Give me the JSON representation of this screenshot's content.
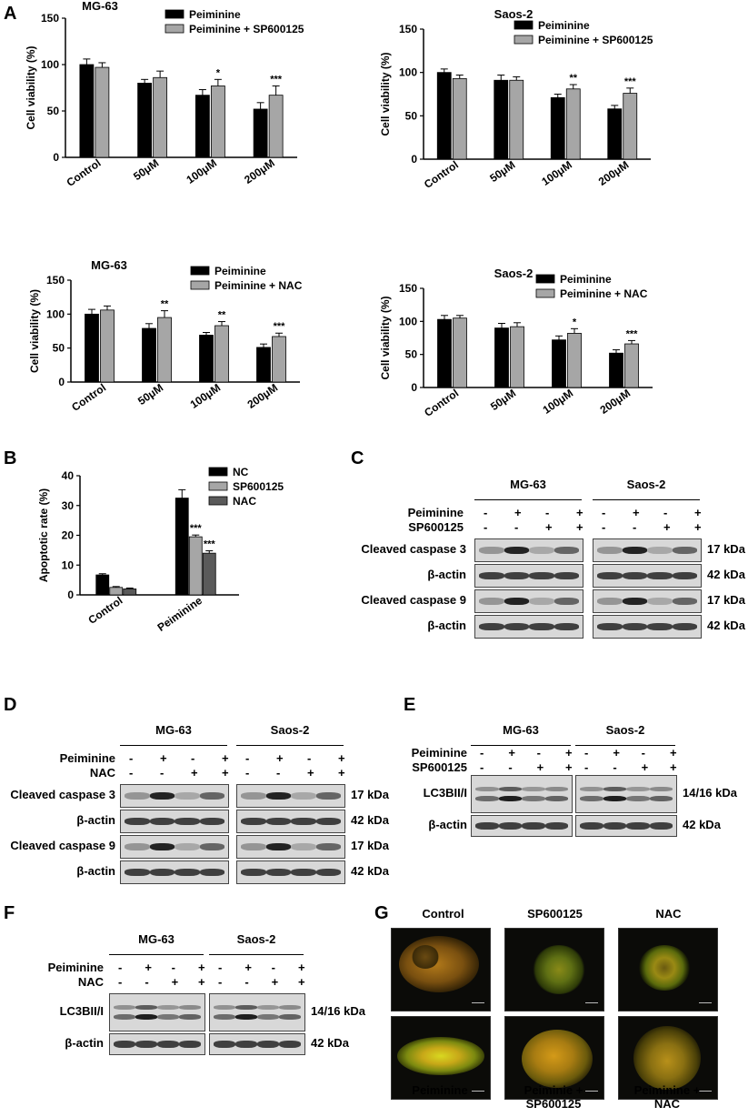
{
  "panel_labels": {
    "A": "A",
    "B": "B",
    "C": "C",
    "D": "D",
    "E": "E",
    "F": "F",
    "G": "G"
  },
  "chart_data": [
    {
      "id": "A1",
      "type": "bar",
      "title": "MG-63",
      "categories": [
        "Control",
        "50μM",
        "100μM",
        "200μM"
      ],
      "ylabel": "Cell viability (%)",
      "ylim": [
        0,
        150
      ],
      "yticks": [
        0,
        50,
        100,
        150
      ],
      "series": [
        {
          "name": "Peiminine",
          "values": [
            100,
            80,
            67,
            52
          ],
          "errors": [
            6,
            4,
            6,
            7
          ],
          "color": "#000000"
        },
        {
          "name": "Peiminine + SP600125",
          "values": [
            97,
            86,
            77,
            67
          ],
          "errors": [
            5,
            7,
            7,
            10
          ],
          "color": "#a6a6a6"
        }
      ],
      "annotations": [
        "",
        "",
        "*",
        "***"
      ],
      "legend": "top-right"
    },
    {
      "id": "A2",
      "type": "bar",
      "title": "Saos-2",
      "categories": [
        "Control",
        "50μM",
        "100μM",
        "200μM"
      ],
      "ylabel": "Cell viability (%)",
      "ylim": [
        0,
        150
      ],
      "yticks": [
        0,
        50,
        100,
        150
      ],
      "series": [
        {
          "name": "Peiminine",
          "values": [
            100,
            91,
            71,
            58
          ],
          "errors": [
            4,
            6,
            4,
            4
          ],
          "color": "#000000"
        },
        {
          "name": "Peiminine + SP600125",
          "values": [
            93,
            91,
            81,
            76
          ],
          "errors": [
            4,
            4,
            5,
            6
          ],
          "color": "#a6a6a6"
        }
      ],
      "annotations": [
        "",
        "",
        "**",
        "***"
      ],
      "legend": "top-right"
    },
    {
      "id": "A3",
      "type": "bar",
      "title": "MG-63",
      "categories": [
        "Control",
        "50μM",
        "100μM",
        "200μM"
      ],
      "ylabel": "Cell viability (%)",
      "ylim": [
        0,
        150
      ],
      "yticks": [
        0,
        50,
        100,
        150
      ],
      "series": [
        {
          "name": "Peiminine",
          "values": [
            100,
            79,
            69,
            51
          ],
          "errors": [
            7,
            7,
            4,
            5
          ],
          "color": "#000000"
        },
        {
          "name": "Peiminine + NAC",
          "values": [
            106,
            95,
            83,
            67
          ],
          "errors": [
            6,
            10,
            6,
            5
          ],
          "color": "#a6a6a6"
        }
      ],
      "annotations": [
        "",
        "**",
        "**",
        "***"
      ],
      "legend": "top-right"
    },
    {
      "id": "A4",
      "type": "bar",
      "title": "Saos-2",
      "categories": [
        "Control",
        "50μM",
        "100μM",
        "200μM"
      ],
      "ylabel": "Cell viability (%)",
      "ylim": [
        0,
        150
      ],
      "yticks": [
        0,
        50,
        100,
        150
      ],
      "series": [
        {
          "name": "Peiminine",
          "values": [
            103,
            90,
            72,
            52
          ],
          "errors": [
            6,
            7,
            6,
            5
          ],
          "color": "#000000"
        },
        {
          "name": "Peiminine + NAC",
          "values": [
            105,
            92,
            82,
            66
          ],
          "errors": [
            4,
            6,
            7,
            5
          ],
          "color": "#a6a6a6"
        }
      ],
      "annotations": [
        "",
        "",
        "*",
        "***"
      ],
      "legend": "top-right"
    },
    {
      "id": "B",
      "type": "bar",
      "title": "",
      "categories": [
        "Control",
        "Peiminine"
      ],
      "ylabel": "Apoptotic rate (%)",
      "ylim": [
        0,
        40
      ],
      "yticks": [
        0,
        10,
        20,
        30,
        40
      ],
      "series": [
        {
          "name": "NC",
          "values": [
            6.7,
            32.5
          ],
          "errors": [
            0.4,
            2.8
          ],
          "color": "#000000"
        },
        {
          "name": "SP600125",
          "values": [
            2.5,
            19.5
          ],
          "errors": [
            0.3,
            0.6
          ],
          "color": "#a6a6a6"
        },
        {
          "name": "NAC",
          "values": [
            2.0,
            14.0
          ],
          "errors": [
            0.3,
            0.8
          ],
          "color": "#5a5a5a"
        }
      ],
      "annotations": [
        "",
        "***",
        "***"
      ],
      "legend": "top-right"
    }
  ],
  "blots": {
    "C": {
      "cells": [
        "MG-63",
        "Saos-2"
      ],
      "treatments": [
        {
          "name": "Peiminine",
          "signs": [
            "-",
            "+",
            "-",
            "+"
          ]
        },
        {
          "name": "SP600125",
          "signs": [
            "-",
            "-",
            "+",
            "+"
          ]
        }
      ],
      "rows": [
        {
          "label": "Cleaved caspase 3",
          "kda": "17 kDa"
        },
        {
          "label": "β-actin",
          "kda": "42 kDa"
        },
        {
          "label": "Cleaved caspase 9",
          "kda": "17 kDa"
        },
        {
          "label": "β-actin",
          "kda": "42 kDa"
        }
      ]
    },
    "D": {
      "cells": [
        "MG-63",
        "Saos-2"
      ],
      "treatments": [
        {
          "name": "Peiminine",
          "signs": [
            "-",
            "+",
            "-",
            "+"
          ]
        },
        {
          "name": "NAC",
          "signs": [
            "-",
            "-",
            "+",
            "+"
          ]
        }
      ],
      "rows": [
        {
          "label": "Cleaved caspase 3",
          "kda": "17 kDa"
        },
        {
          "label": "β-actin",
          "kda": "42 kDa"
        },
        {
          "label": "Cleaved caspase 9",
          "kda": "17 kDa"
        },
        {
          "label": "β-actin",
          "kda": "42 kDa"
        }
      ]
    },
    "E": {
      "cells": [
        "MG-63",
        "Saos-2"
      ],
      "treatments": [
        {
          "name": "Peiminine",
          "signs": [
            "-",
            "+",
            "-",
            "+"
          ]
        },
        {
          "name": "SP600125",
          "signs": [
            "-",
            "-",
            "+",
            "+"
          ]
        }
      ],
      "rows": [
        {
          "label": "LC3BII/I",
          "kda": "14/16 kDa"
        },
        {
          "label": "β-actin",
          "kda": "42 kDa"
        }
      ]
    },
    "F": {
      "cells": [
        "MG-63",
        "Saos-2"
      ],
      "treatments": [
        {
          "name": "Peiminine",
          "signs": [
            "-",
            "+",
            "-",
            "+"
          ]
        },
        {
          "name": "NAC",
          "signs": [
            "-",
            "-",
            "+",
            "+"
          ]
        }
      ],
      "rows": [
        {
          "label": "LC3BII/I",
          "kda": "14/16 kDa"
        },
        {
          "label": "β-actin",
          "kda": "42 kDa"
        }
      ]
    }
  },
  "micrographs": {
    "col_titles": [
      "Control",
      "SP600125",
      "NAC"
    ],
    "captions": [
      "Peiminine",
      "Peiminie +\nSP600125",
      "Peiminine +\nNAC"
    ]
  }
}
